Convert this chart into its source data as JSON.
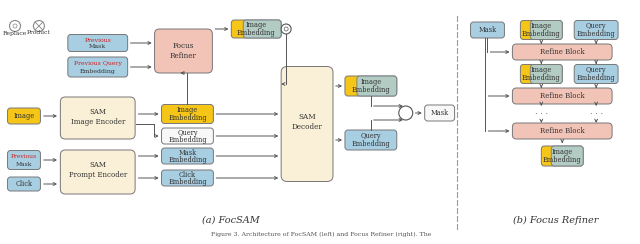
{
  "fig_width": 6.4,
  "fig_height": 2.44,
  "dpi": 100,
  "bg": "#ffffff",
  "Y": "#F5C518",
  "BL": "#A8CEE2",
  "PK": "#F2C4B8",
  "CR": "#FAF0D8",
  "WH": "#F8F8F8",
  "GR": "#888888",
  "DK": "#333333",
  "RD": "#CC2222",
  "AR": "#555555",
  "sub_a": "(a) FocSAM",
  "sub_b": "(b) Focus Refiner",
  "caption": "Figure 3. Architecture of FocSAM (left) and Focus Refiner (right). The"
}
